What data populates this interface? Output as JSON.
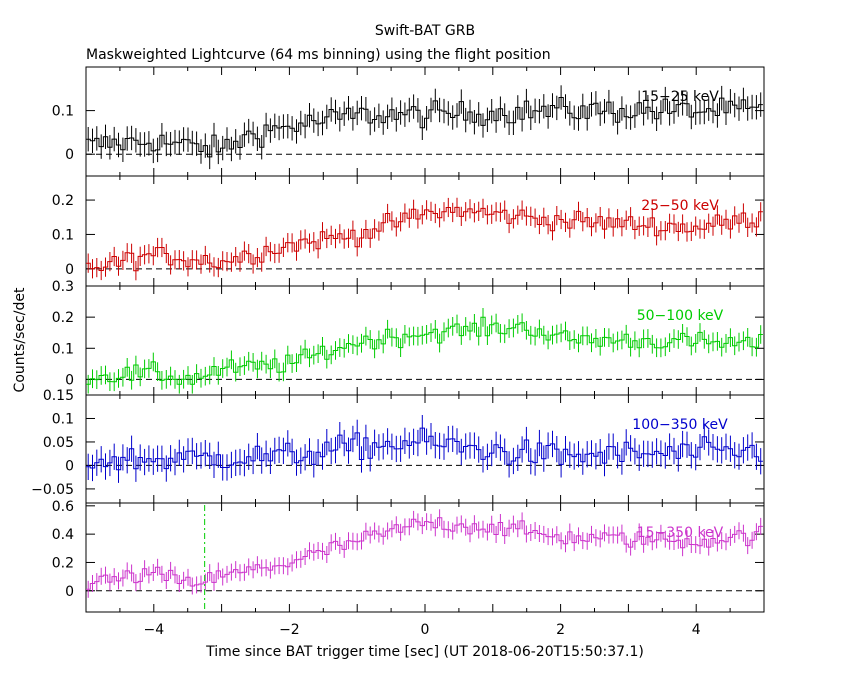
{
  "title": "Swift-BAT GRB",
  "subtitle": "Maskweighted Lightcurve (64 ms binning) using the flight position",
  "ylabel": "Counts/sec/det",
  "xlabel": "Time since BAT trigger time [sec] (UT 2018-06-20T15:50:37.1)",
  "chart_data": {
    "type": "line",
    "x_range": [
      -5,
      5
    ],
    "x_ticks": [
      -4,
      -2,
      0,
      2,
      4
    ],
    "x_tick_labels": [
      "−4",
      "−2",
      "0",
      "2",
      "4"
    ],
    "marker_time": -3.25,
    "panels": [
      {
        "band": "15−25 keV",
        "color": "#000000",
        "ylim": [
          -0.05,
          0.2
        ],
        "y_ticks": [
          0,
          0.1
        ],
        "y_tick_labels": [
          "0",
          "0.1"
        ],
        "anchors": [
          [
            -5,
            0.02
          ],
          [
            -4,
            0.03
          ],
          [
            -3,
            0.01
          ],
          [
            -2.5,
            0.05
          ],
          [
            -1,
            0.09
          ],
          [
            0,
            0.09
          ],
          [
            2,
            0.1
          ],
          [
            5,
            0.1
          ]
        ],
        "noise": 0.028
      },
      {
        "band": "25−50 keV",
        "color": "#cc0000",
        "ylim": [
          -0.05,
          0.27
        ],
        "y_ticks": [
          0,
          0.1,
          0.2
        ],
        "y_tick_labels": [
          "0",
          "0.1",
          "0.2"
        ],
        "anchors": [
          [
            -5,
            0.0
          ],
          [
            -4,
            0.04
          ],
          [
            -3,
            0.02
          ],
          [
            -2,
            0.07
          ],
          [
            -1,
            0.1
          ],
          [
            0,
            0.16
          ],
          [
            0.5,
            0.17
          ],
          [
            2,
            0.14
          ],
          [
            4,
            0.12
          ],
          [
            5,
            0.15
          ]
        ],
        "noise": 0.028
      },
      {
        "band": "50−100 keV",
        "color": "#00cc00",
        "ylim": [
          -0.05,
          0.3
        ],
        "y_ticks": [
          0,
          0.1,
          0.2,
          0.3
        ],
        "y_tick_labels": [
          "0",
          "0.1",
          "0.2",
          "0.3"
        ],
        "anchors": [
          [
            -5,
            0.01
          ],
          [
            -4,
            0.02
          ],
          [
            -3.5,
            0.0
          ],
          [
            -3,
            0.03
          ],
          [
            -2,
            0.05
          ],
          [
            -1,
            0.12
          ],
          [
            0,
            0.15
          ],
          [
            1.5,
            0.17
          ],
          [
            2,
            0.13
          ],
          [
            4,
            0.12
          ],
          [
            5,
            0.11
          ]
        ],
        "noise": 0.03
      },
      {
        "band": "100−350 keV",
        "color": "#0000cc",
        "ylim": [
          -0.08,
          0.15
        ],
        "y_ticks": [
          -0.05,
          0,
          0.05,
          0.1,
          0.15
        ],
        "y_tick_labels": [
          "−0.05",
          "0",
          "0.05",
          "0.1",
          "0.15"
        ],
        "anchors": [
          [
            -5,
            0.01
          ],
          [
            -2,
            0.02
          ],
          [
            -1,
            0.04
          ],
          [
            0,
            0.05
          ],
          [
            1,
            0.03
          ],
          [
            2,
            0.02
          ],
          [
            5,
            0.03
          ]
        ],
        "noise": 0.028
      },
      {
        "band": "15−350 keV",
        "color": "#cc33cc",
        "ylim": [
          -0.15,
          0.62
        ],
        "y_ticks": [
          0,
          0.2,
          0.4,
          0.6
        ],
        "y_tick_labels": [
          "0",
          "0.2",
          "0.4",
          "0.6"
        ],
        "anchors": [
          [
            -5,
            0.05
          ],
          [
            -4,
            0.12
          ],
          [
            -3.5,
            0.05
          ],
          [
            -3,
            0.1
          ],
          [
            -2,
            0.2
          ],
          [
            -1,
            0.35
          ],
          [
            0,
            0.48
          ],
          [
            1,
            0.45
          ],
          [
            2,
            0.38
          ],
          [
            4,
            0.35
          ],
          [
            5,
            0.4
          ]
        ],
        "noise": 0.06
      }
    ]
  }
}
